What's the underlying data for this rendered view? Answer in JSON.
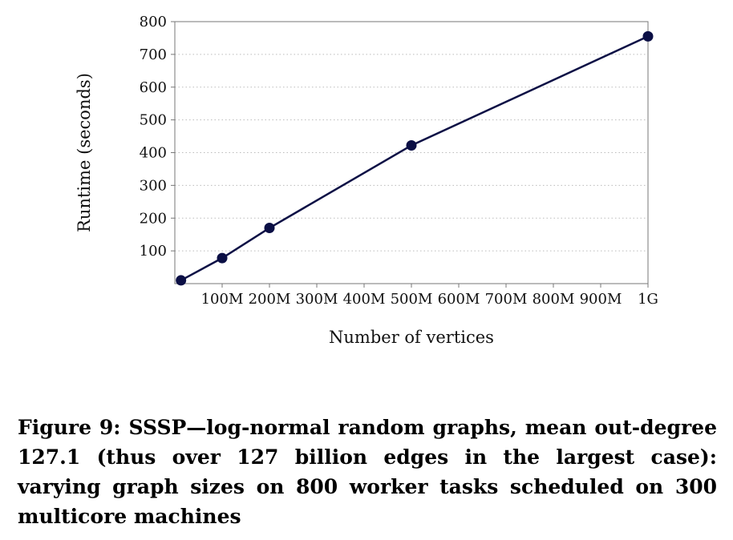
{
  "chart_data": {
    "type": "line",
    "title": "",
    "xlabel": "Number of vertices",
    "ylabel": "Runtime (seconds)",
    "x_unit": "vertices (M = million, G = billion)",
    "xlim": [
      0,
      1000
    ],
    "ylim": [
      0,
      800
    ],
    "x_ticks": [
      100,
      200,
      300,
      400,
      500,
      600,
      700,
      800,
      900,
      1000
    ],
    "x_tick_labels": [
      "100M",
      "200M",
      "300M",
      "400M",
      "500M",
      "600M",
      "700M",
      "800M",
      "900M",
      "1G"
    ],
    "y_ticks": [
      100,
      200,
      300,
      400,
      500,
      600,
      700,
      800
    ],
    "y_tick_labels": [
      "100",
      "200",
      "300",
      "400",
      "500",
      "600",
      "700",
      "800"
    ],
    "grid": "horizontal dotted",
    "series": [
      {
        "x": [
          13,
          100,
          200,
          500,
          1000
        ],
        "y": [
          10,
          78,
          170,
          422,
          755
        ]
      }
    ]
  },
  "colors": {
    "series_line": "#0b0f45",
    "grid": "#bbbbbb",
    "axis": "#777777"
  },
  "caption": "Figure 9: SSSP—log-normal random graphs, mean out-degree 127.1 (thus over 127 billion edges in the largest case): varying graph sizes on 800 worker tasks scheduled on 300 multicore machines"
}
